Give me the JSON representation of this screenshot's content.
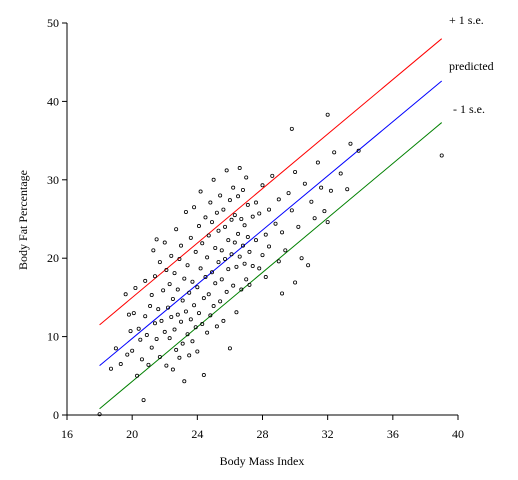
{
  "chart_data": {
    "type": "scatter",
    "title": "",
    "xlabel": "Body Mass Index",
    "ylabel": "Body Fat Percentage",
    "xlim": [
      16,
      40
    ],
    "ylim": [
      0,
      50
    ],
    "xticks": [
      "16",
      "20",
      "24",
      "28",
      "32",
      "36",
      "40"
    ],
    "yticks": [
      "0",
      "10",
      "20",
      "30",
      "40",
      "50"
    ],
    "grid": false,
    "lines": [
      {
        "label": "+ 1 s.e.",
        "color": "#ff0000",
        "x": [
          18.0,
          39.0
        ],
        "y": [
          11.5,
          48.0
        ]
      },
      {
        "label": "predicted",
        "color": "#0000ff",
        "x": [
          18.0,
          39.0
        ],
        "y": [
          6.3,
          42.6
        ]
      },
      {
        "label": "- 1 s.e.",
        "color": "#008000",
        "x": [
          18.0,
          39.0
        ],
        "y": [
          0.8,
          37.3
        ]
      }
    ],
    "points": [
      [
        18.0,
        0.1
      ],
      [
        18.7,
        5.9
      ],
      [
        19.0,
        8.5
      ],
      [
        19.3,
        6.5
      ],
      [
        19.6,
        15.4
      ],
      [
        19.7,
        7.7
      ],
      [
        19.8,
        12.8
      ],
      [
        19.9,
        10.7
      ],
      [
        20.0,
        8.2
      ],
      [
        20.1,
        13.0
      ],
      [
        20.2,
        16.2
      ],
      [
        20.3,
        5.0
      ],
      [
        20.4,
        11.0
      ],
      [
        20.5,
        9.6
      ],
      [
        20.6,
        7.1
      ],
      [
        20.7,
        1.9
      ],
      [
        20.8,
        12.6
      ],
      [
        20.8,
        17.1
      ],
      [
        20.9,
        10.2
      ],
      [
        21.0,
        6.4
      ],
      [
        21.1,
        13.9
      ],
      [
        21.2,
        8.6
      ],
      [
        21.2,
        15.3
      ],
      [
        21.3,
        21.0
      ],
      [
        21.4,
        11.7
      ],
      [
        21.4,
        17.7
      ],
      [
        21.5,
        9.7
      ],
      [
        21.5,
        22.4
      ],
      [
        21.6,
        13.5
      ],
      [
        21.7,
        7.4
      ],
      [
        21.7,
        19.5
      ],
      [
        21.8,
        12.0
      ],
      [
        21.9,
        15.9
      ],
      [
        22.0,
        10.6
      ],
      [
        22.0,
        22.0
      ],
      [
        22.1,
        6.3
      ],
      [
        22.1,
        18.5
      ],
      [
        22.2,
        13.7
      ],
      [
        22.3,
        9.8
      ],
      [
        22.3,
        16.7
      ],
      [
        22.4,
        12.5
      ],
      [
        22.4,
        20.3
      ],
      [
        22.5,
        5.8
      ],
      [
        22.5,
        14.8
      ],
      [
        22.6,
        10.9
      ],
      [
        22.6,
        18.1
      ],
      [
        22.7,
        8.3
      ],
      [
        22.7,
        23.7
      ],
      [
        22.8,
        12.8
      ],
      [
        22.8,
        16.0
      ],
      [
        22.9,
        7.3
      ],
      [
        22.9,
        19.9
      ],
      [
        23.0,
        11.9
      ],
      [
        23.0,
        21.6
      ],
      [
        23.1,
        9.1
      ],
      [
        23.1,
        14.6
      ],
      [
        23.2,
        4.3
      ],
      [
        23.2,
        17.4
      ],
      [
        23.3,
        13.2
      ],
      [
        23.3,
        25.9
      ],
      [
        23.4,
        10.3
      ],
      [
        23.4,
        19.1
      ],
      [
        23.5,
        7.6
      ],
      [
        23.5,
        15.6
      ],
      [
        23.6,
        12.2
      ],
      [
        23.6,
        22.6
      ],
      [
        23.7,
        9.4
      ],
      [
        23.7,
        17.0
      ],
      [
        23.8,
        14.0
      ],
      [
        23.8,
        26.5
      ],
      [
        23.9,
        11.2
      ],
      [
        23.9,
        20.8
      ],
      [
        24.0,
        8.1
      ],
      [
        24.0,
        16.3
      ],
      [
        24.1,
        13.0
      ],
      [
        24.1,
        24.1
      ],
      [
        24.2,
        18.7
      ],
      [
        24.2,
        28.5
      ],
      [
        24.3,
        11.6
      ],
      [
        24.3,
        21.9
      ],
      [
        24.4,
        14.9
      ],
      [
        24.4,
        5.1
      ],
      [
        24.5,
        17.6
      ],
      [
        24.5,
        25.2
      ],
      [
        24.6,
        10.5
      ],
      [
        24.6,
        20.1
      ],
      [
        24.7,
        15.4
      ],
      [
        24.7,
        22.9
      ],
      [
        24.8,
        12.7
      ],
      [
        24.8,
        27.1
      ],
      [
        24.9,
        18.2
      ],
      [
        24.9,
        24.6
      ],
      [
        25.0,
        13.9
      ],
      [
        25.0,
        30.0
      ],
      [
        25.1,
        16.8
      ],
      [
        25.1,
        21.3
      ],
      [
        25.2,
        11.3
      ],
      [
        25.2,
        25.8
      ],
      [
        25.3,
        19.5
      ],
      [
        25.3,
        23.5
      ],
      [
        25.4,
        14.5
      ],
      [
        25.4,
        28.0
      ],
      [
        25.5,
        17.3
      ],
      [
        25.5,
        21.0
      ],
      [
        25.6,
        12.0
      ],
      [
        25.6,
        26.2
      ],
      [
        25.7,
        19.9
      ],
      [
        25.7,
        24.0
      ],
      [
        25.8,
        15.7
      ],
      [
        25.8,
        31.2
      ],
      [
        25.9,
        18.6
      ],
      [
        25.9,
        22.3
      ],
      [
        26.0,
        8.5
      ],
      [
        26.0,
        27.4
      ],
      [
        26.1,
        20.5
      ],
      [
        26.1,
        24.9
      ],
      [
        26.2,
        16.5
      ],
      [
        26.2,
        29.0
      ],
      [
        26.3,
        22.0
      ],
      [
        26.3,
        25.5
      ],
      [
        26.4,
        18.9
      ],
      [
        26.4,
        13.1
      ],
      [
        26.5,
        23.1
      ],
      [
        26.5,
        27.9
      ],
      [
        26.6,
        20.2
      ],
      [
        26.6,
        31.5
      ],
      [
        26.7,
        16.0
      ],
      [
        26.7,
        25.0
      ],
      [
        26.8,
        21.6
      ],
      [
        26.8,
        28.7
      ],
      [
        26.9,
        19.3
      ],
      [
        26.9,
        24.2
      ],
      [
        27.0,
        17.3
      ],
      [
        27.0,
        30.3
      ],
      [
        27.1,
        22.7
      ],
      [
        27.1,
        26.8
      ],
      [
        27.2,
        20.8
      ],
      [
        27.2,
        16.6
      ],
      [
        27.4,
        25.3
      ],
      [
        27.4,
        19.0
      ],
      [
        27.6,
        27.1
      ],
      [
        27.6,
        22.3
      ],
      [
        27.8,
        18.7
      ],
      [
        27.8,
        25.7
      ],
      [
        28.0,
        20.4
      ],
      [
        28.0,
        29.3
      ],
      [
        28.2,
        23.0
      ],
      [
        28.2,
        17.6
      ],
      [
        28.4,
        26.2
      ],
      [
        28.4,
        21.5
      ],
      [
        28.6,
        30.5
      ],
      [
        28.8,
        24.4
      ],
      [
        29.0,
        19.6
      ],
      [
        29.0,
        27.5
      ],
      [
        29.2,
        15.5
      ],
      [
        29.2,
        23.3
      ],
      [
        29.4,
        21.0
      ],
      [
        29.6,
        28.3
      ],
      [
        29.8,
        26.1
      ],
      [
        29.8,
        36.5
      ],
      [
        30.0,
        16.9
      ],
      [
        30.0,
        31.0
      ],
      [
        30.2,
        24.0
      ],
      [
        30.4,
        20.0
      ],
      [
        30.6,
        29.5
      ],
      [
        30.8,
        19.1
      ],
      [
        31.0,
        27.2
      ],
      [
        31.2,
        25.1
      ],
      [
        31.4,
        32.2
      ],
      [
        31.6,
        29.0
      ],
      [
        31.8,
        26.0
      ],
      [
        32.0,
        38.3
      ],
      [
        32.0,
        24.6
      ],
      [
        32.2,
        28.6
      ],
      [
        32.4,
        33.5
      ],
      [
        32.8,
        30.8
      ],
      [
        33.2,
        28.8
      ],
      [
        33.4,
        34.6
      ],
      [
        33.9,
        33.7
      ],
      [
        39.0,
        33.1
      ]
    ],
    "marker": "hollow-circle",
    "legend": "labels at top-right beside line ends"
  }
}
